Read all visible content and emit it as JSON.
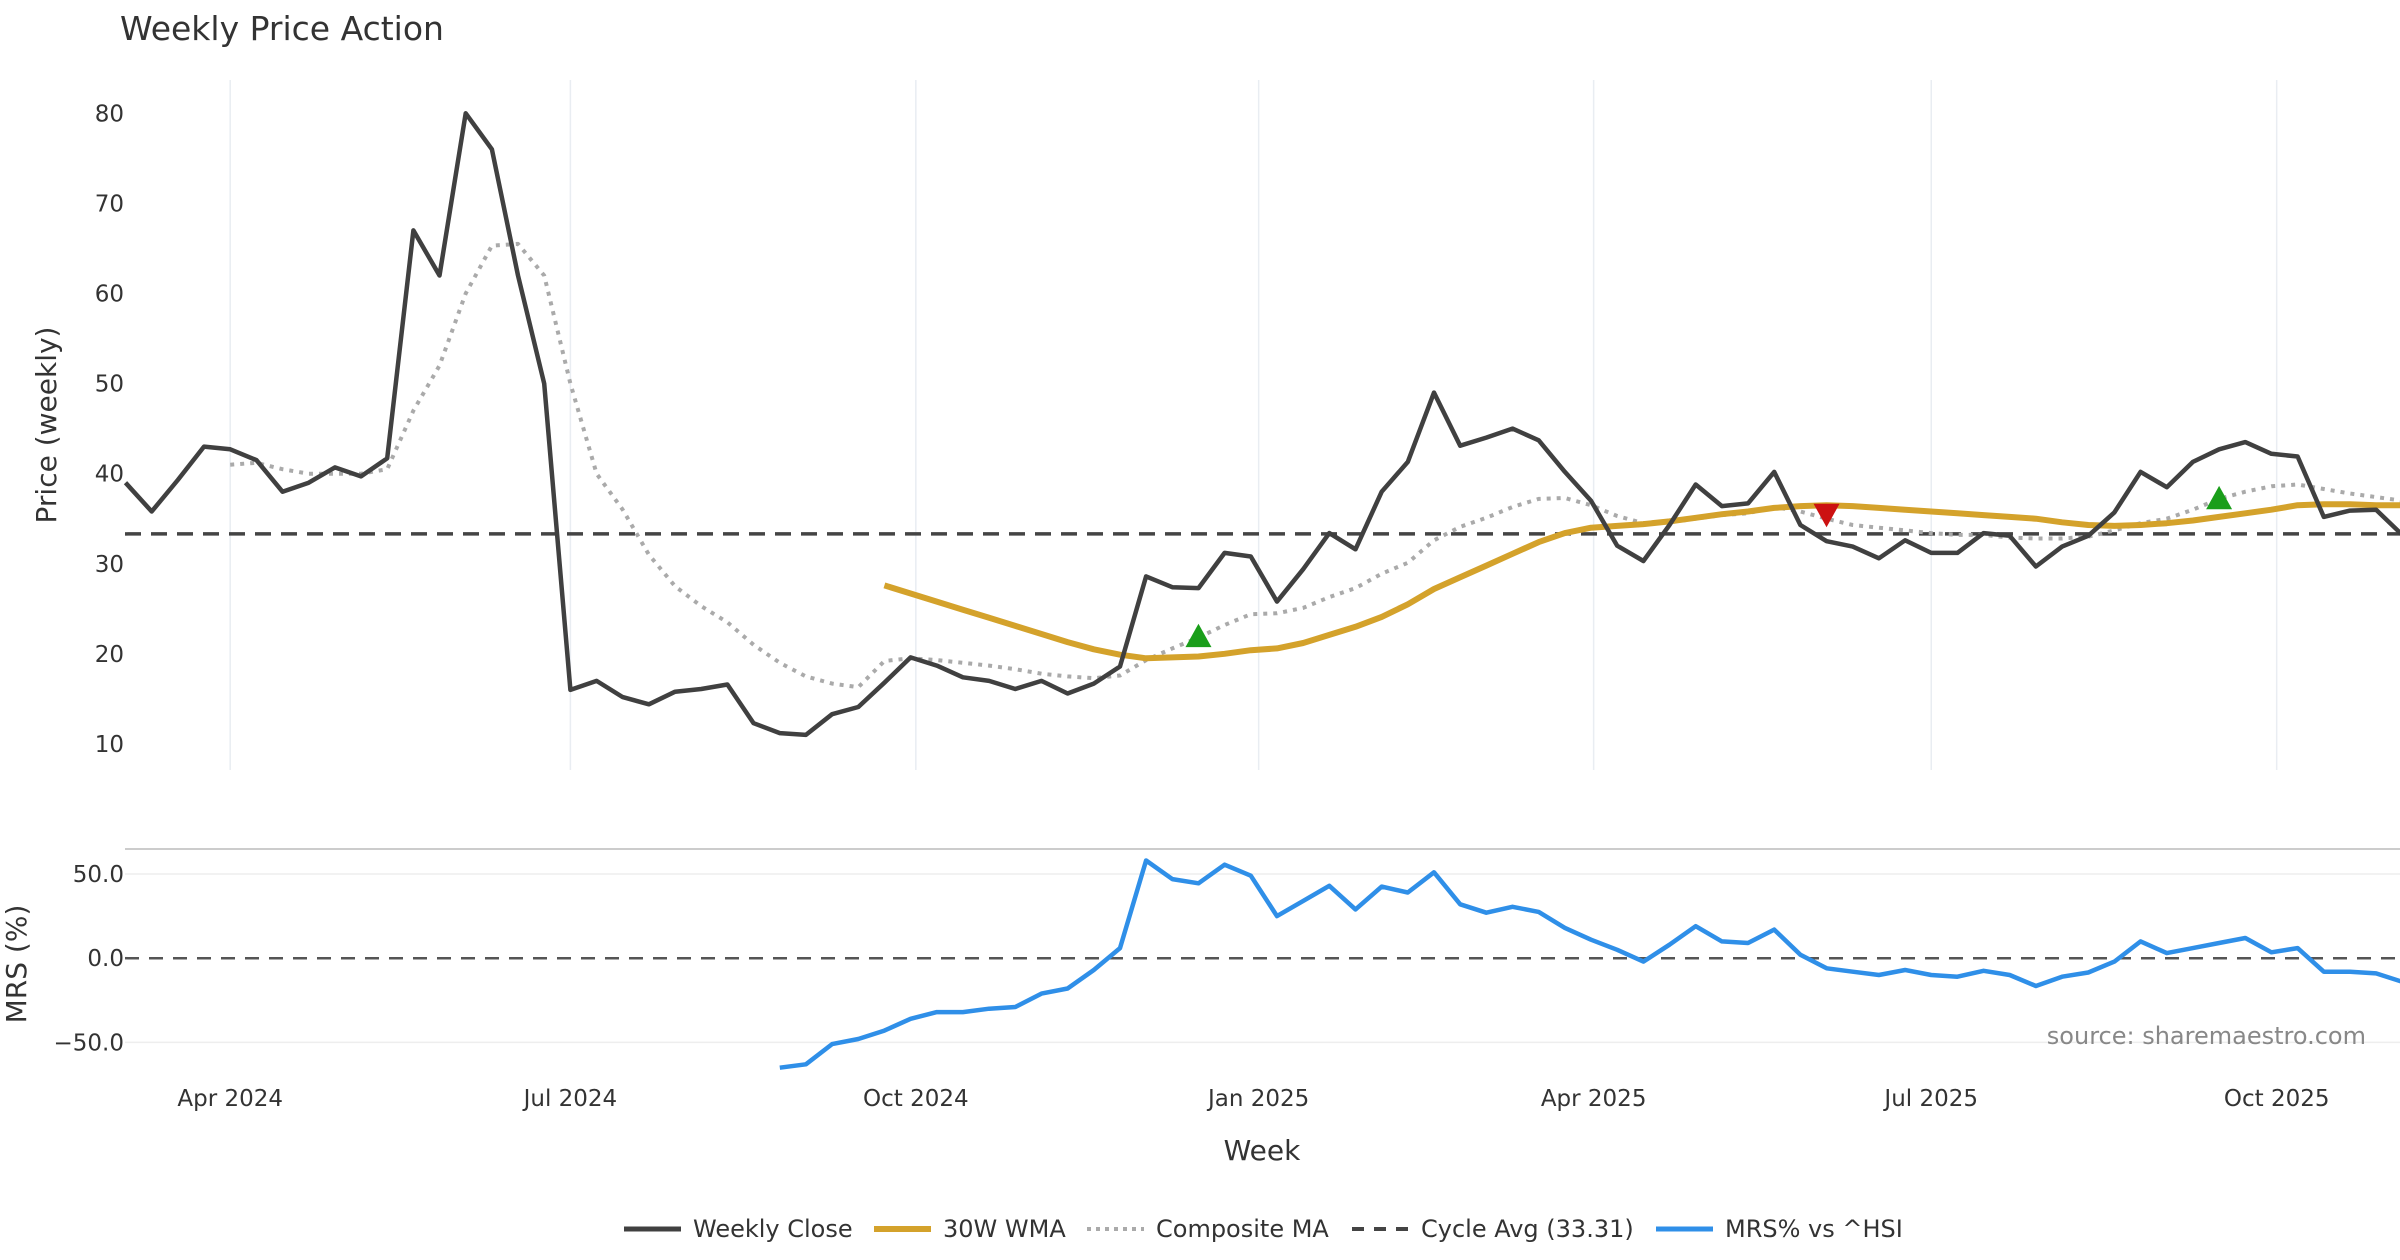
{
  "chart_data": [
    {
      "type": "line",
      "title": "Weekly Price Action",
      "xlabel": "Week",
      "ylabel": "Price (weekly)",
      "ylim": [
        7,
        84
      ],
      "yticks": [
        10,
        20,
        30,
        40,
        50,
        60,
        70,
        80
      ],
      "x_unit": "week index (0 = first plotted week)",
      "x_ticks": [
        {
          "label": "Apr 2024",
          "week": 4
        },
        {
          "label": "Jul 2024",
          "week": 17
        },
        {
          "label": "Oct 2024",
          "week": 30.2
        },
        {
          "label": "Jan 2025",
          "week": 43.3
        },
        {
          "label": "Apr 2025",
          "week": 56.1
        },
        {
          "label": "Jul 2025",
          "week": 69
        },
        {
          "label": "Oct 2025",
          "week": 82.2
        }
      ],
      "grid": "vertical",
      "series": [
        {
          "name": "Weekly Close",
          "color": "#404040",
          "style": "solid",
          "start": 0,
          "values": [
            39,
            35.8,
            39.3,
            43,
            42.7,
            41.5,
            38,
            39,
            40.7,
            39.7,
            41.7,
            67,
            62,
            80,
            76,
            62,
            50,
            16,
            17,
            15.2,
            14.4,
            15.8,
            16.1,
            16.6,
            12.3,
            11.2,
            11,
            13.3,
            14.1,
            16.8,
            19.6,
            18.7,
            17.4,
            17,
            16.1,
            17,
            15.6,
            16.7,
            18.6,
            28.6,
            27.4,
            27.3,
            31.2,
            30.8,
            25.8,
            29.4,
            33.4,
            31.6,
            38,
            41.3,
            49,
            43.1,
            44,
            45,
            43.7,
            40.2,
            37,
            32,
            30.3,
            34.3,
            38.8,
            36.4,
            36.7,
            40.2,
            34.3,
            32.5,
            31.9,
            30.6,
            32.6,
            31.2,
            31.2,
            33.4,
            33.1,
            29.7,
            31.9,
            33.1,
            35.7,
            40.2,
            38.5,
            41.3,
            42.7,
            43.5,
            42.2,
            41.9,
            35.2,
            35.9,
            36,
            33.2
          ]
        },
        {
          "name": "30W WMA",
          "color": "#D4A22B",
          "style": "solid-thick",
          "start": 29,
          "values": [
            27.6,
            26.7,
            25.8,
            24.9,
            24,
            23.1,
            22.2,
            21.3,
            20.5,
            19.9,
            19.5,
            19.6,
            19.7,
            20,
            20.4,
            20.6,
            21.2,
            22.1,
            23,
            24.1,
            25.5,
            27.2,
            28.5,
            29.8,
            31.1,
            32.4,
            33.4,
            34,
            34.2,
            34.4,
            34.7,
            35.1,
            35.5,
            35.8,
            36.2,
            36.4,
            36.5,
            36.4,
            36.2,
            36,
            35.8,
            35.6,
            35.4,
            35.2,
            35,
            34.6,
            34.3,
            34.2,
            34.3,
            34.5,
            34.8,
            35.2,
            35.6,
            36,
            36.5,
            36.6,
            36.6,
            36.5,
            36.5
          ]
        },
        {
          "name": "Composite MA",
          "color": "#AAAAAA",
          "style": "dotted",
          "start": 4,
          "values": [
            41,
            41.2,
            40.5,
            40,
            40,
            40,
            40.5,
            47,
            52,
            60,
            65.3,
            65.5,
            62,
            50,
            40,
            36,
            31,
            27.5,
            25.3,
            23.5,
            21,
            19,
            17.5,
            16.7,
            16.3,
            19.2,
            19.5,
            19.3,
            19,
            18.7,
            18.3,
            17.8,
            17.5,
            17.3,
            17.6,
            19.3,
            20.6,
            21.8,
            23.2,
            24.4,
            24.5,
            25.1,
            26.3,
            27.3,
            28.9,
            30.1,
            32.6,
            34.1,
            35.1,
            36.3,
            37.2,
            37.3,
            36.5,
            35.3,
            34.5,
            34.6,
            35,
            35.4,
            35.6,
            36.3,
            35.8,
            35,
            34.3,
            34,
            33.7,
            33.4,
            33.2,
            33.2,
            32.9,
            32.8,
            32.8,
            33,
            33.7,
            34.5,
            35,
            36,
            37.2,
            38,
            38.6,
            38.8,
            38.3,
            37.8,
            37.4,
            37
          ]
        },
        {
          "name": "Cycle Avg (33.31)",
          "color": "#444444",
          "style": "dashed",
          "constant": 33.31
        }
      ],
      "markers": [
        {
          "type": "buy",
          "shape": "triangle-up",
          "color": "#1A9E1A",
          "week": 41,
          "value": 21.9
        },
        {
          "type": "sell",
          "shape": "triangle-down",
          "color": "#CC1111",
          "week": 65,
          "value": 35.5
        },
        {
          "type": "buy",
          "shape": "triangle-up",
          "color": "#1A9E1A",
          "week": 80,
          "value": 37.2
        }
      ]
    },
    {
      "type": "line",
      "ylabel": "MRS (%)",
      "ylim": [
        -72,
        64
      ],
      "yticks": [
        50,
        0,
        -50
      ],
      "ytick_labels": [
        "50.0",
        "0.0",
        "−50.0"
      ],
      "series": [
        {
          "name": "MRS% vs ^HSI",
          "color": "#2F8FE8",
          "style": "solid",
          "start": 25,
          "values": [
            -65,
            -63,
            -51,
            -48,
            -43,
            -36,
            -32,
            -32,
            -30,
            -29,
            -21,
            -18,
            -7,
            6,
            58,
            47,
            44.5,
            55.5,
            49,
            25,
            34,
            43,
            29,
            42.5,
            39,
            51,
            32,
            27,
            30.5,
            27.5,
            18,
            11,
            5,
            -2,
            8,
            19,
            10,
            9,
            17,
            2,
            -6,
            -8,
            -10,
            -7,
            -10,
            -11,
            -7.5,
            -10,
            -16.5,
            -11,
            -8.5,
            -2,
            10,
            3,
            6,
            9,
            12,
            3.5,
            6,
            -8,
            -8,
            -9,
            -14
          ]
        }
      ],
      "zero_line": {
        "value": 0,
        "style": "dashed",
        "color": "#555555"
      }
    }
  ],
  "legend": {
    "placement": "bottom-center",
    "items": [
      "Weekly Close",
      "30W WMA",
      "Composite MA",
      "Cycle Avg (33.31)",
      "MRS% vs ^HSI"
    ]
  },
  "source": "source: sharemaestro.com"
}
